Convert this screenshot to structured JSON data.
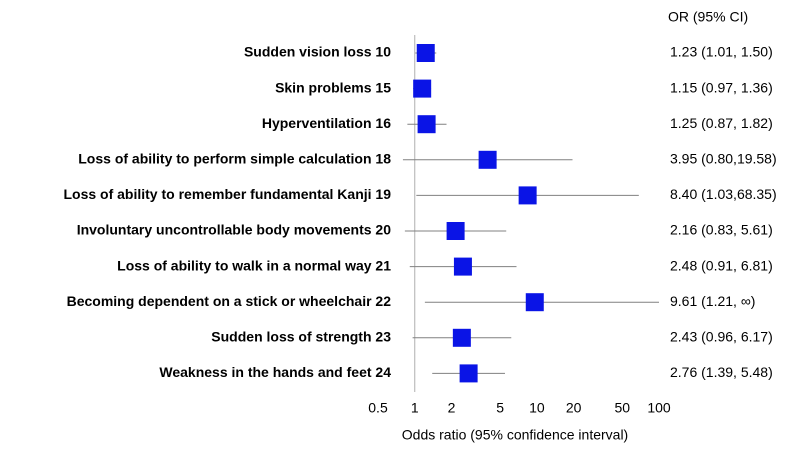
{
  "chart_data": {
    "type": "forest",
    "column_header": "OR (95% CI)",
    "x_label": "Odds ratio (95% confidence interval)",
    "categories": [
      "Sudden vision loss 10",
      "Skin problems 15",
      "Hyperventilation 16",
      "Loss of ability to perform simple calculation 18",
      "Loss of ability to remember fundamental Kanji 19",
      "Involuntary uncontrollable body movements 20",
      "Loss of ability to walk in a normal way 21",
      "Becoming dependent on a stick or wheelchair 22",
      "Sudden loss of strength 23",
      "Weakness in the hands and feet 24"
    ],
    "values": [
      1.23,
      1.15,
      1.25,
      3.95,
      8.4,
      2.16,
      2.48,
      9.61,
      2.43,
      2.76
    ],
    "ci_low": [
      1.01,
      0.97,
      0.87,
      0.8,
      1.03,
      0.83,
      0.91,
      1.21,
      0.96,
      1.39
    ],
    "ci_high": [
      1.5,
      1.36,
      1.82,
      19.58,
      68.35,
      5.61,
      6.81,
      null,
      6.17,
      5.48
    ],
    "value_labels": [
      "1.23 (1.01, 1.50)",
      "1.15 (0.97, 1.36)",
      "1.25 (0.87, 1.82)",
      "3.95 (0.80,19.58)",
      "8.40 (1.03,68.35)",
      "2.16 (0.83, 5.61)",
      "2.48 (0.91, 6.81)",
      "9.61 (1.21,    ∞)",
      "2.43 (0.96, 6.17)",
      "2.76 (1.39, 5.48)"
    ],
    "color": "#0a14e6",
    "ci_color": "#808080",
    "xscale": "log",
    "xlim": [
      0.5,
      100
    ],
    "xticks": [
      0.5,
      1,
      2,
      5,
      10,
      20,
      50,
      100
    ],
    "ref_line": 1
  }
}
